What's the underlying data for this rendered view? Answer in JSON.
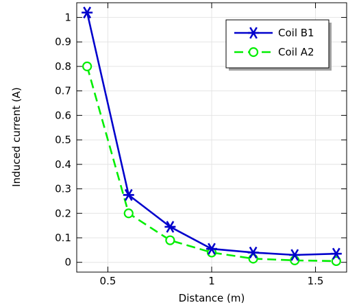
{
  "chart_data": {
    "type": "line",
    "xlabel": "Distance (m)",
    "ylabel": "Induced current (A)",
    "xlim": [
      0.35,
      1.65
    ],
    "ylim": [
      -0.04,
      1.06
    ],
    "xticks": [
      0.5,
      1,
      1.5
    ],
    "xtick_labels": [
      "0.5",
      "1",
      "1.5"
    ],
    "yticks": [
      0,
      0.1,
      0.2,
      0.3,
      0.4,
      0.5,
      0.6,
      0.7,
      0.8,
      0.9,
      1
    ],
    "ytick_labels": [
      "0",
      "0.1",
      "0.2",
      "0.3",
      "0.4",
      "0.5",
      "0.6",
      "0.7",
      "0.8",
      "0.9",
      "1"
    ],
    "grid": true,
    "legend_position": "top-right",
    "series": [
      {
        "name": "Coil B1",
        "color": "#0000cc",
        "line_style": "solid",
        "marker": "asterisk",
        "x": [
          0.4,
          0.6,
          0.8,
          1.0,
          1.2,
          1.4,
          1.6
        ],
        "y": [
          1.02,
          0.275,
          0.145,
          0.055,
          0.04,
          0.03,
          0.035
        ]
      },
      {
        "name": "Coil A2",
        "color": "#00ee00",
        "line_style": "dashed",
        "marker": "circle",
        "x": [
          0.4,
          0.6,
          0.8,
          1.0,
          1.2,
          1.4,
          1.6
        ],
        "y": [
          0.8,
          0.2,
          0.09,
          0.04,
          0.015,
          0.008,
          0.005
        ]
      }
    ]
  }
}
